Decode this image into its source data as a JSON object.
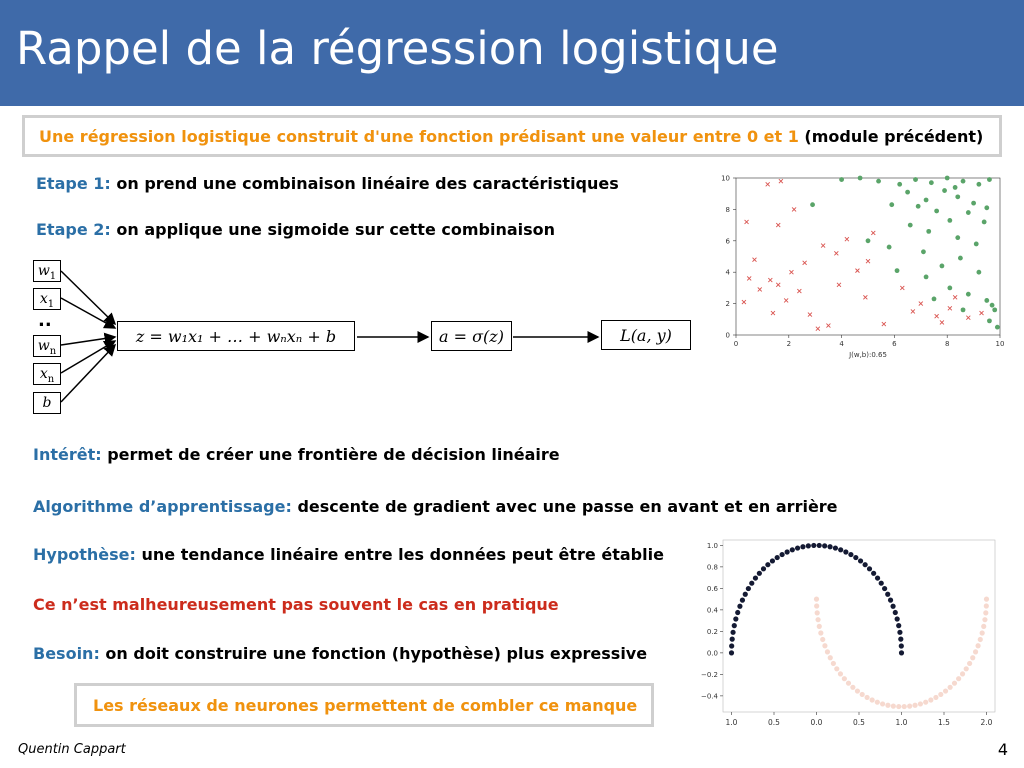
{
  "slide": {
    "title": "Rappel de la régression logistique",
    "author": "Quentin Cappart",
    "page_number": "4"
  },
  "intro_box": {
    "text": "Une régression logistique construit d'une fonction prédisant une valeur entre 0 et 1",
    "suffix": "(module précédent)"
  },
  "steps": [
    {
      "label": "Etape 1:",
      "text": "on prend une combinaison linéaire des caractéristiques"
    },
    {
      "label": "Etape 2:",
      "text": "on applique une sigmoide sur cette combinaison"
    }
  ],
  "diagram": {
    "inputs": [
      "w",
      "x",
      "w",
      "x",
      "b"
    ],
    "input_subs": [
      "1",
      "1",
      "n",
      "n",
      ""
    ],
    "dots": "..",
    "linear_node": "z = w₁x₁ + … + wₙxₙ + b",
    "sigmoid_node": "a = σ(z)",
    "loss_node": "L(a, y)"
  },
  "points": [
    {
      "label": "Intérêt:",
      "text": "permet de créer une frontière de décision linéaire",
      "color": "#2b6fa6"
    },
    {
      "label": "Algorithme d’apprentissage:",
      "text": "descente de gradient avec une passe en avant et en arrière",
      "color": "#2b6fa6"
    },
    {
      "label": "Hypothèse:",
      "text": "une tendance linéaire entre les données peut être établie",
      "color": "#2b6fa6"
    },
    {
      "label": "Ce n’est malheureusement pas souvent le cas en pratique",
      "text": "",
      "color": "#cc2c1c"
    },
    {
      "label": "Besoin:",
      "text": "on doit construire une fonction (hypothèse) plus expressive",
      "color": "#2b6fa6"
    }
  ],
  "conclusion_box": {
    "text": "Les réseaux de neurones permettent de combler ce manque"
  },
  "chart_data": [
    {
      "type": "scatter",
      "title": "",
      "xlabel": "J(w,b):0.65",
      "ylabel": "",
      "xlim": [
        0,
        10
      ],
      "ylim": [
        0,
        10
      ],
      "xticks": [
        "0",
        "2",
        "4",
        "6",
        "8",
        "10"
      ],
      "yticks": [
        "0",
        "2",
        "4",
        "6",
        "8",
        "10"
      ],
      "grid": false,
      "series": [
        {
          "marker": "x",
          "color": "#d9534f",
          "points": [
            [
              0.4,
              7.2
            ],
            [
              0.7,
              4.8
            ],
            [
              0.5,
              3.6
            ],
            [
              0.9,
              2.9
            ],
            [
              1.3,
              3.5
            ],
            [
              1.6,
              3.2
            ],
            [
              1.9,
              2.2
            ],
            [
              1.4,
              1.4
            ],
            [
              2.1,
              4.0
            ],
            [
              2.4,
              2.8
            ],
            [
              2.8,
              1.3
            ],
            [
              3.1,
              0.4
            ],
            [
              3.5,
              0.6
            ],
            [
              1.2,
              9.6
            ],
            [
              1.7,
              9.8
            ],
            [
              2.2,
              8.0
            ],
            [
              1.6,
              7.0
            ],
            [
              3.8,
              5.2
            ],
            [
              4.2,
              6.1
            ],
            [
              3.9,
              3.2
            ],
            [
              4.6,
              4.1
            ],
            [
              5.0,
              4.7
            ],
            [
              4.9,
              2.4
            ],
            [
              5.6,
              0.7
            ],
            [
              6.3,
              3.0
            ],
            [
              7.0,
              2.0
            ],
            [
              7.6,
              1.2
            ],
            [
              7.8,
              0.8
            ],
            [
              8.3,
              2.4
            ],
            [
              8.8,
              1.1
            ],
            [
              2.6,
              4.6
            ],
            [
              0.3,
              2.1
            ],
            [
              3.3,
              5.7
            ],
            [
              6.7,
              1.5
            ],
            [
              8.1,
              1.7
            ],
            [
              9.3,
              1.4
            ],
            [
              5.2,
              6.5
            ]
          ]
        },
        {
          "marker": "o",
          "color": "#5aa469",
          "points": [
            [
              4.0,
              9.9
            ],
            [
              4.7,
              10.0
            ],
            [
              5.4,
              9.8
            ],
            [
              6.2,
              9.6
            ],
            [
              6.8,
              9.9
            ],
            [
              7.4,
              9.7
            ],
            [
              8.0,
              10.0
            ],
            [
              8.6,
              9.8
            ],
            [
              9.2,
              9.6
            ],
            [
              9.6,
              9.9
            ],
            [
              6.5,
              9.1
            ],
            [
              7.2,
              8.6
            ],
            [
              7.9,
              9.2
            ],
            [
              8.4,
              8.8
            ],
            [
              9.0,
              8.4
            ],
            [
              9.5,
              8.1
            ],
            [
              5.9,
              8.3
            ],
            [
              6.9,
              8.2
            ],
            [
              7.6,
              7.9
            ],
            [
              8.1,
              7.3
            ],
            [
              8.8,
              7.8
            ],
            [
              9.4,
              7.2
            ],
            [
              6.6,
              7.0
            ],
            [
              7.3,
              6.6
            ],
            [
              8.4,
              6.2
            ],
            [
              9.1,
              5.8
            ],
            [
              5.0,
              6.0
            ],
            [
              5.8,
              5.6
            ],
            [
              7.1,
              5.3
            ],
            [
              7.8,
              4.4
            ],
            [
              8.5,
              4.9
            ],
            [
              9.2,
              4.0
            ],
            [
              6.1,
              4.1
            ],
            [
              7.2,
              3.7
            ],
            [
              8.1,
              3.0
            ],
            [
              8.8,
              2.6
            ],
            [
              9.5,
              2.2
            ],
            [
              9.8,
              1.6
            ],
            [
              7.5,
              2.3
            ],
            [
              8.6,
              1.6
            ],
            [
              9.6,
              0.9
            ],
            [
              9.9,
              0.5
            ],
            [
              2.9,
              8.3
            ],
            [
              8.3,
              9.4
            ],
            [
              9.7,
              1.9
            ]
          ]
        }
      ]
    },
    {
      "type": "scatter",
      "title": "",
      "xlabel": "",
      "ylabel": "",
      "xlim": [
        -1.1,
        2.1
      ],
      "ylim": [
        -0.55,
        1.05
      ],
      "xticks": [
        "1.0",
        "0.5",
        "0.0",
        "0.5",
        "1.0",
        "1.5",
        "2.0"
      ],
      "xtick_values": [
        -1.0,
        -0.5,
        0.0,
        0.5,
        1.0,
        1.5,
        2.0
      ],
      "yticks": [
        "1.0",
        "0.8",
        "0.6",
        "0.4",
        "0.2",
        "0.0",
        "−0.2",
        "−0.4"
      ],
      "ytick_values": [
        1.0,
        0.8,
        0.6,
        0.4,
        0.2,
        0.0,
        -0.2,
        -0.4
      ],
      "grid": false,
      "series": [
        {
          "shape": "upper-moon",
          "color": "#141a33",
          "n_points": 50
        },
        {
          "shape": "lower-moon",
          "color": "#f6d9cf",
          "n_points": 50
        }
      ]
    }
  ]
}
